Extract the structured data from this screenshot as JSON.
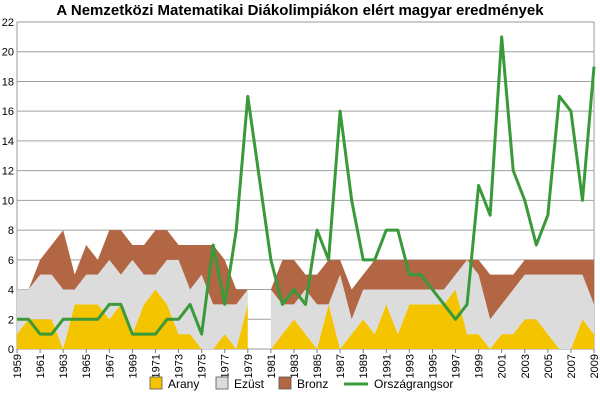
{
  "chart_data": {
    "type": "area",
    "title": "A Nemzetközi Matematikai Diákolimpiákon elért magyar eredmények",
    "xlabel": "",
    "ylabel": "",
    "x": [
      1959,
      1960,
      1961,
      1962,
      1963,
      1964,
      1965,
      1966,
      1967,
      1968,
      1969,
      1970,
      1971,
      1972,
      1973,
      1974,
      1975,
      1976,
      1977,
      1978,
      1979,
      1980,
      1981,
      1982,
      1983,
      1984,
      1985,
      1986,
      1987,
      1988,
      1989,
      1990,
      1991,
      1992,
      1993,
      1994,
      1995,
      1996,
      1997,
      1998,
      1999,
      2000,
      2001,
      2002,
      2003,
      2004,
      2005,
      2006,
      2007,
      2008,
      2009
    ],
    "x_tick_labels": [
      "1959",
      "1961",
      "1963",
      "1965",
      "1967",
      "1969",
      "1971",
      "1973",
      "1975",
      "1977",
      "1979",
      "1981",
      "1983",
      "1985",
      "1987",
      "1989",
      "1991",
      "1993",
      "1995",
      "1997",
      "1999",
      "2001",
      "2003",
      "2005",
      "2007",
      "2009"
    ],
    "ylim": [
      0,
      22
    ],
    "y_ticks": [
      0,
      2,
      4,
      6,
      8,
      10,
      12,
      14,
      16,
      18,
      20,
      22
    ],
    "grid": true,
    "legend_position": "bottom",
    "series": [
      {
        "name": "Arany",
        "kind": "stacked-area",
        "color": "#f5c400",
        "values": [
          1,
          2,
          2,
          2,
          0,
          3,
          3,
          3,
          2,
          3,
          1,
          3,
          4,
          3,
          1,
          1,
          0,
          0,
          1,
          0,
          3,
          null,
          0,
          1,
          2,
          1,
          0,
          3,
          0,
          1,
          2,
          1,
          3,
          1,
          3,
          3,
          3,
          3,
          4,
          1,
          1,
          0,
          1,
          1,
          2,
          2,
          1,
          0,
          0,
          2,
          1
        ]
      },
      {
        "name": "Ezüst",
        "kind": "stacked-area",
        "color": "#dcdcdc",
        "values": [
          3,
          2,
          3,
          3,
          4,
          1,
          2,
          2,
          4,
          2,
          5,
          2,
          1,
          3,
          5,
          3,
          5,
          3,
          2,
          3,
          1,
          null,
          4,
          2,
          1,
          3,
          3,
          0,
          5,
          1,
          2,
          3,
          1,
          3,
          1,
          1,
          1,
          1,
          1,
          5,
          4,
          2,
          2,
          3,
          3,
          3,
          4,
          5,
          5,
          3,
          2
        ]
      },
      {
        "name": "Bronz",
        "kind": "stacked-area",
        "color": "#b26644",
        "values": [
          0,
          0,
          1,
          2,
          4,
          1,
          2,
          1,
          2,
          3,
          1,
          2,
          3,
          2,
          1,
          3,
          2,
          4,
          3,
          1,
          0,
          null,
          0,
          3,
          3,
          1,
          2,
          3,
          1,
          2,
          1,
          2,
          2,
          2,
          2,
          2,
          2,
          2,
          1,
          0,
          1,
          3,
          2,
          1,
          1,
          1,
          1,
          1,
          1,
          1,
          3
        ]
      },
      {
        "name": "Országrangsor",
        "kind": "line",
        "color": "#3a9a3a",
        "values": [
          2,
          2,
          1,
          1,
          2,
          2,
          2,
          2,
          3,
          3,
          1,
          1,
          1,
          2,
          2,
          3,
          1,
          7,
          3,
          8,
          17,
          null,
          6,
          3,
          4,
          3,
          8,
          6,
          16,
          10,
          6,
          6,
          8,
          8,
          5,
          5,
          4,
          3,
          2,
          3,
          11,
          9,
          21,
          12,
          10,
          7,
          9,
          17,
          16,
          10,
          19
        ]
      }
    ]
  }
}
